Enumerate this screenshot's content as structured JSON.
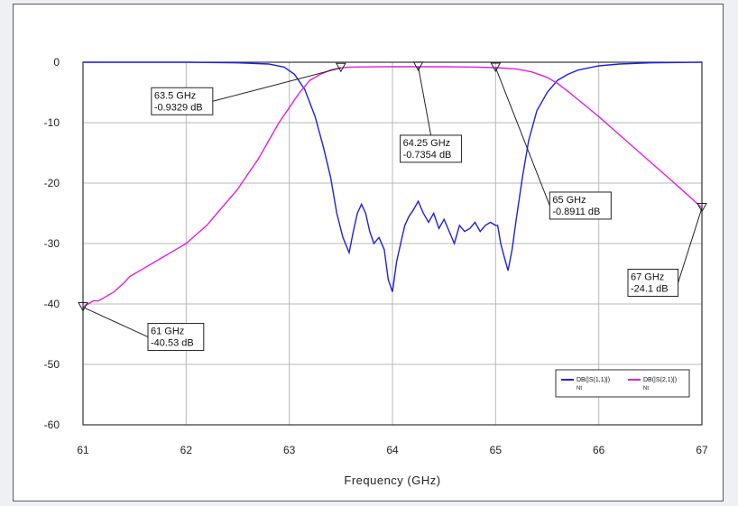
{
  "chart_data": {
    "type": "line",
    "title": "",
    "xlabel": "Frequency (GHz)",
    "ylabel": "",
    "xlim": [
      61,
      67
    ],
    "ylim": [
      -60,
      0
    ],
    "xticks": [
      61,
      62,
      63,
      64,
      65,
      66,
      67
    ],
    "yticks": [
      0,
      -10,
      -20,
      -30,
      -40,
      -50,
      -60
    ],
    "grid": true,
    "legend_position": "bottom-right",
    "series": [
      {
        "name": "DB(|S(1,1)|)",
        "legend_sub": "Nt",
        "color": "#2020e0",
        "x": [
          61,
          61.5,
          62,
          62.5,
          62.8,
          62.95,
          63.05,
          63.15,
          63.25,
          63.33,
          63.4,
          63.46,
          63.52,
          63.58,
          63.62,
          63.66,
          63.7,
          63.74,
          63.78,
          63.82,
          63.87,
          63.92,
          63.96,
          64,
          64.04,
          64.08,
          64.12,
          64.16,
          64.2,
          64.25,
          64.3,
          64.35,
          64.4,
          64.45,
          64.5,
          64.55,
          64.6,
          64.65,
          64.7,
          64.75,
          64.8,
          64.85,
          64.9,
          64.95,
          65,
          65.02,
          65.05,
          65.08,
          65.12,
          65.16,
          65.2,
          65.26,
          65.32,
          65.4,
          65.5,
          65.6,
          65.7,
          65.8,
          66,
          66.2,
          66.5,
          67
        ],
        "y": [
          0,
          0,
          0,
          -0.1,
          -0.3,
          -0.8,
          -2,
          -4.5,
          -9,
          -14,
          -19,
          -25,
          -29,
          -31.5,
          -28,
          -25,
          -23.5,
          -25,
          -28,
          -30,
          -29,
          -31,
          -36,
          -38,
          -33,
          -30,
          -27,
          -25.5,
          -24.5,
          -23,
          -25,
          -26.5,
          -25,
          -27.5,
          -26,
          -28,
          -30,
          -27,
          -28,
          -27.5,
          -26.5,
          -28,
          -27,
          -26.5,
          -27,
          -27,
          -30,
          -32,
          -34.5,
          -31,
          -26,
          -19,
          -13,
          -8,
          -5,
          -3,
          -2,
          -1.3,
          -0.6,
          -0.3,
          -0.1,
          0
        ]
      },
      {
        "name": "DB(|S(2,1)|)",
        "legend_sub": "Nt",
        "color": "#e020e0",
        "x": [
          61,
          61.05,
          61.1,
          61.15,
          61.2,
          61.3,
          61.4,
          61.45,
          61.5,
          61.6,
          61.65,
          61.7,
          61.8,
          61.9,
          62,
          62.1,
          62.2,
          62.3,
          62.4,
          62.5,
          62.6,
          62.7,
          62.8,
          62.9,
          63,
          63.1,
          63.2,
          63.3,
          63.4,
          63.5,
          63.6,
          63.8,
          64,
          64.25,
          64.5,
          64.8,
          65,
          65.2,
          65.35,
          65.5,
          65.6,
          65.7,
          65.8,
          66,
          66.2,
          66.4,
          66.6,
          66.8,
          67
        ],
        "y": [
          -40.5,
          -40,
          -39.5,
          -39.5,
          -39,
          -38,
          -36.5,
          -35.5,
          -35,
          -34,
          -33.5,
          -33,
          -32,
          -31,
          -30,
          -28.5,
          -27,
          -25,
          -23,
          -21,
          -18.5,
          -16,
          -13,
          -10,
          -7.5,
          -5,
          -3,
          -2,
          -1.3,
          -0.93,
          -0.8,
          -0.76,
          -0.74,
          -0.74,
          -0.75,
          -0.8,
          -0.89,
          -1.1,
          -1.6,
          -2.5,
          -3.5,
          -4.8,
          -6.2,
          -9,
          -12,
          -15,
          -18,
          -21,
          -24.1
        ]
      }
    ],
    "markers": [
      {
        "freq": 61,
        "value": -40.53,
        "label1": "61 GHz",
        "label2": "-40.53 dB",
        "box_anchor": "below-right"
      },
      {
        "freq": 63.5,
        "value": -0.9329,
        "label1": "63.5 GHz",
        "label2": "-0.9329 dB",
        "box_anchor": "left"
      },
      {
        "freq": 64.25,
        "value": -0.7354,
        "label1": "64.25 GHz",
        "label2": "-0.7354 dB",
        "box_anchor": "below"
      },
      {
        "freq": 65,
        "value": -0.8911,
        "label1": "65 GHz",
        "label2": "-0.8911 dB",
        "box_anchor": "below-right"
      },
      {
        "freq": 67,
        "value": -24.1,
        "label1": "67 GHz",
        "label2": "-24.1 dB",
        "box_anchor": "below-left"
      }
    ]
  }
}
